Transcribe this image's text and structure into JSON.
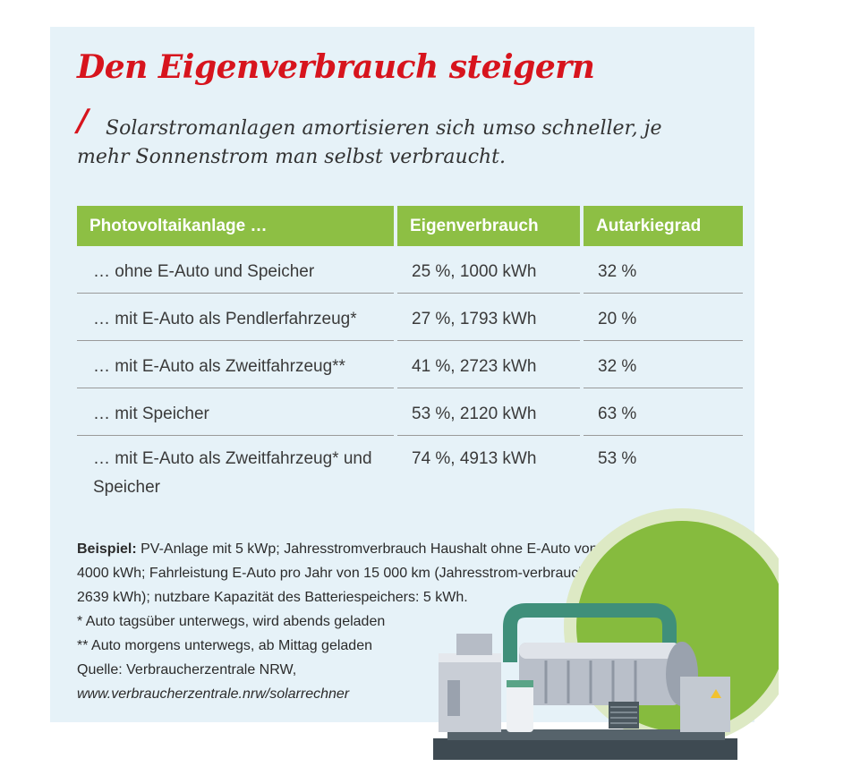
{
  "title": "Den Eigenverbrauch steigern",
  "subtitle": "Solarstromanlagen amortisieren sich umso schneller, je mehr Sonnenstrom man selbst verbraucht.",
  "colors": {
    "accent_red": "#d7141d",
    "header_green": "#8dbf44",
    "panel_bg": "#e6f2f8"
  },
  "table": {
    "headers": [
      "Photovoltaikanlage …",
      "Eigenverbrauch",
      "Autarkiegrad"
    ],
    "rows": [
      [
        "… ohne E-Auto und Speicher",
        "25 %, 1000 kWh",
        "32 %"
      ],
      [
        "… mit E-Auto als Pendlerfahrzeug*",
        "27 %, 1793 kWh",
        "20 %"
      ],
      [
        "… mit E-Auto als Zweitfahrzeug**",
        "41 %, 2723 kWh",
        "32 %"
      ],
      [
        "… mit Speicher",
        "53 %, 2120 kWh",
        "63 %"
      ],
      [
        "… mit E-Auto als Zweitfahrzeug* und Speicher",
        "74 %, 4913 kWh",
        "53 %"
      ]
    ]
  },
  "notes": {
    "lead": "Beispiel:",
    "example": " PV-Anlage mit 5 kWp; Jahresstromverbrauch Haushalt ohne E-Auto von 4000 kWh; Fahrleistung E-Auto pro Jahr von 15 000 km (Jahresstrom-verbrauch: 2639 kWh); nutzbare Kapazität des Batteriespeichers: 5 kWh.",
    "footnote1": "* Auto tagsüber unterwegs, wird abends geladen",
    "footnote2": "** Auto morgens unterwegs, ab Mittag geladen",
    "source": "Quelle: Verbraucherzentrale NRW,",
    "url": "www.verbraucherzentrale.nrw/solarrechner"
  },
  "illustration": "generator-machine-illustration"
}
